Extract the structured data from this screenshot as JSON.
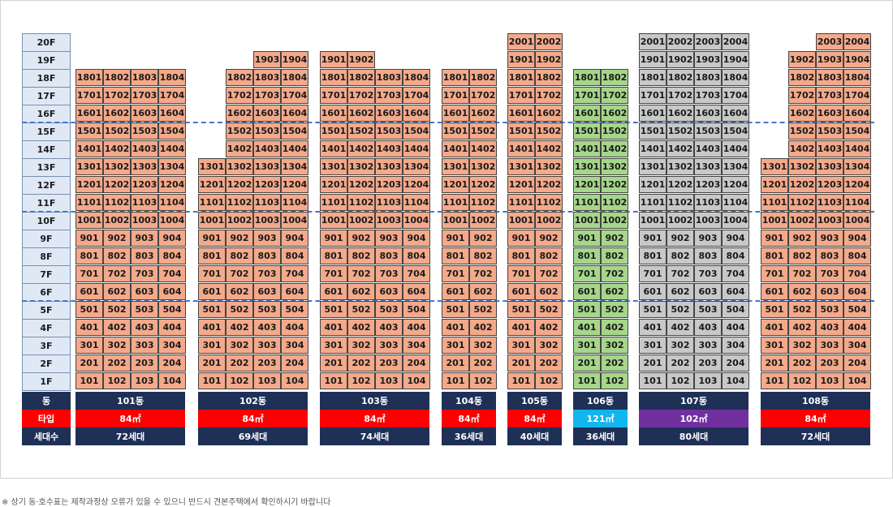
{
  "floors": [
    "20F",
    "19F",
    "18F",
    "17F",
    "16F",
    "15F",
    "14F",
    "13F",
    "12F",
    "11F",
    "10F",
    "9F",
    "8F",
    "7F",
    "6F",
    "5F",
    "4F",
    "3F",
    "2F",
    "1F"
  ],
  "footer_labels": {
    "building": "동",
    "type": "타입",
    "households": "세대수"
  },
  "colors": {
    "orange": "#f3a98a",
    "green": "#a5d68a",
    "gray": "#c8c8c8",
    "navy": "#1f3057",
    "red": "#ff0000",
    "cyan": "#13b5ee",
    "purple": "#7030a0"
  },
  "buildings": [
    {
      "name": "101동",
      "type": "84㎡",
      "type_color": "red",
      "households": "72세대",
      "unit_color": "orange",
      "cols": [
        1,
        2,
        3,
        4
      ],
      "top": {
        "1": 18,
        "2": 18,
        "3": 18,
        "4": 18
      }
    },
    {
      "name": "102동",
      "type": "84㎡",
      "type_color": "red",
      "households": "69세대",
      "unit_color": "orange",
      "cols": [
        1,
        2,
        3,
        4
      ],
      "top": {
        "1": 13,
        "2": 18,
        "3": 19,
        "4": 19
      }
    },
    {
      "name": "103동",
      "type": "84㎡",
      "type_color": "red",
      "households": "74세대",
      "unit_color": "orange",
      "cols": [
        1,
        2,
        3,
        4
      ],
      "top": {
        "1": 19,
        "2": 19,
        "3": 18,
        "4": 18
      }
    },
    {
      "name": "104동",
      "type": "84㎡",
      "type_color": "red",
      "households": "36세대",
      "unit_color": "orange",
      "cols": [
        1,
        2
      ],
      "top": {
        "1": 18,
        "2": 18
      }
    },
    {
      "name": "105동",
      "type": "84㎡",
      "type_color": "red",
      "households": "40세대",
      "unit_color": "orange",
      "cols": [
        1,
        2
      ],
      "top": {
        "1": 20,
        "2": 20
      }
    },
    {
      "name": "106동",
      "type": "121㎡",
      "type_color": "cyan",
      "households": "36세대",
      "unit_color": "green",
      "cols": [
        1,
        2
      ],
      "top": {
        "1": 18,
        "2": 18
      }
    },
    {
      "name": "107동",
      "type": "102㎡",
      "type_color": "purple",
      "households": "80세대",
      "unit_color": "gray",
      "cols": [
        1,
        2,
        3,
        4
      ],
      "top": {
        "1": 20,
        "2": 20,
        "3": 20,
        "4": 20
      }
    },
    {
      "name": "108동",
      "type": "84㎡",
      "type_color": "red",
      "households": "72세대",
      "unit_color": "orange",
      "cols": [
        1,
        2,
        3,
        4
      ],
      "top": {
        "1": 13,
        "2": 19,
        "3": 20,
        "4": 20
      }
    }
  ],
  "note": "※ 상기 동·호수표는 제작과정상 오류가 있을 수 있으니 반드시 견본주택에서 확인하시기 바랍니다"
}
